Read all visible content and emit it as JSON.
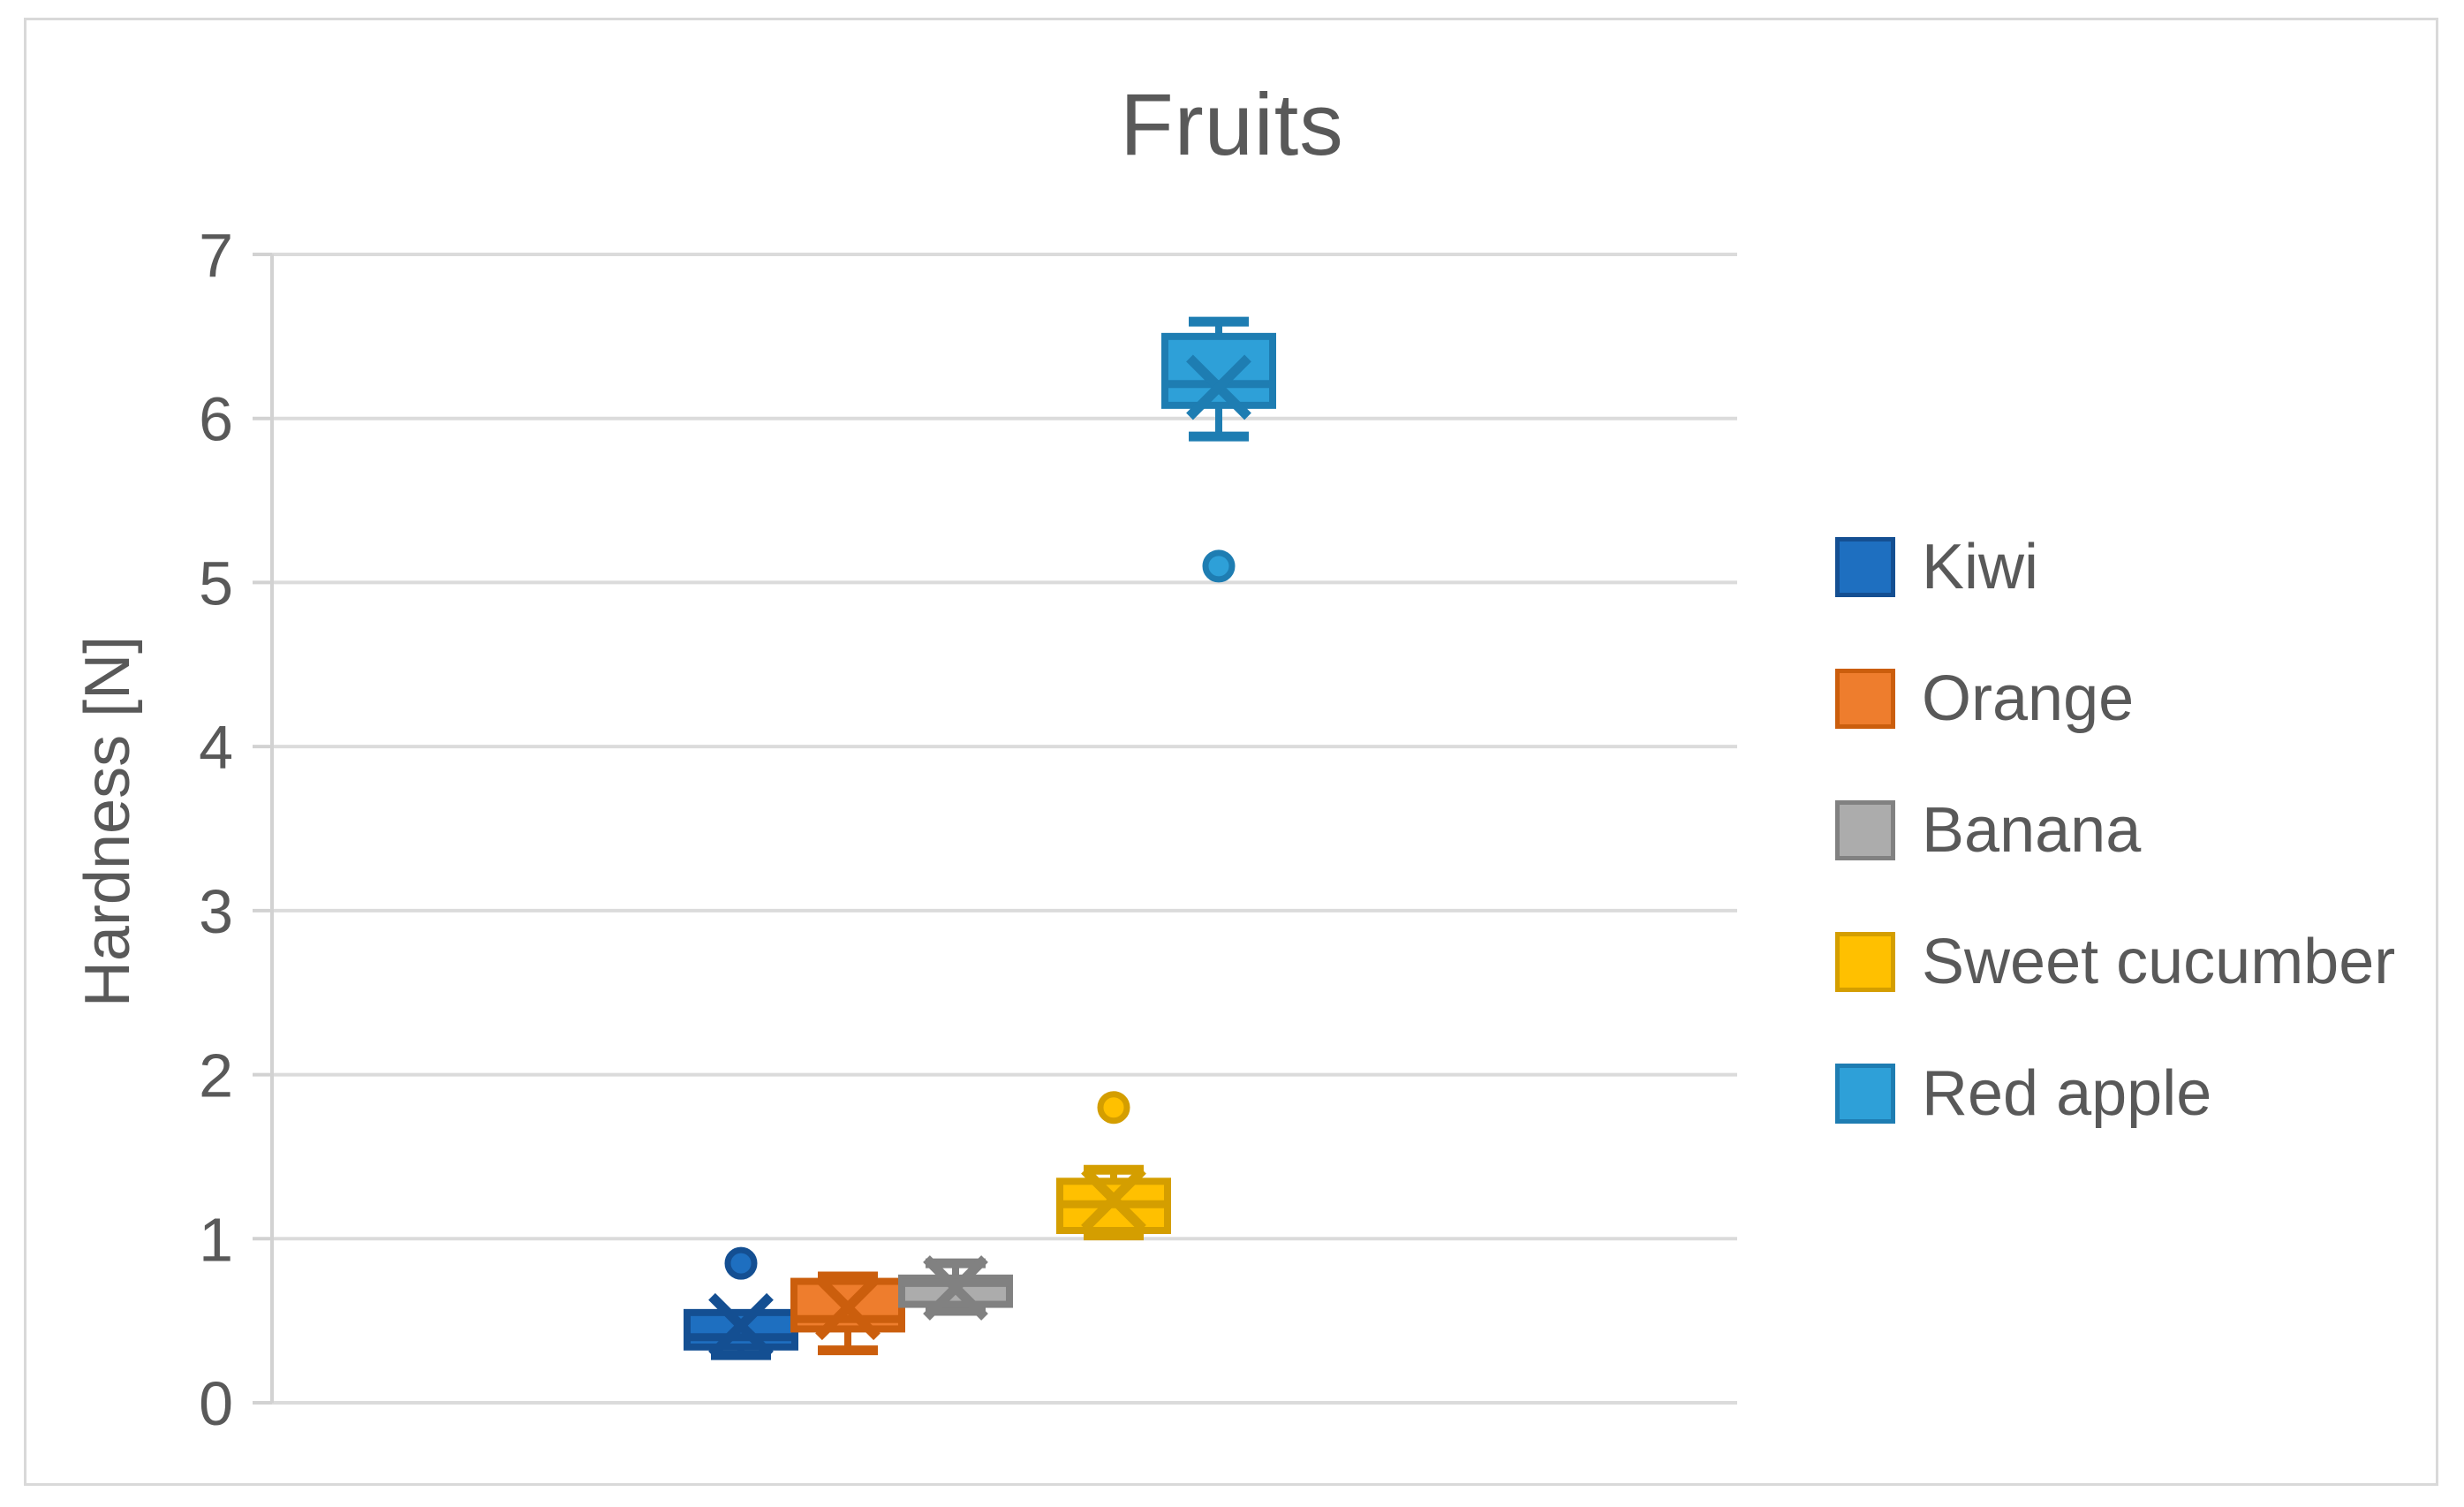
{
  "chart_data": {
    "type": "boxplot",
    "title": "Fruits",
    "xlabel": "",
    "ylabel": "Hardness [N]",
    "ylim": [
      0,
      7
    ],
    "yticks": [
      "0",
      "1",
      "2",
      "3",
      "4",
      "5",
      "6",
      "7"
    ],
    "grid": "horizontal",
    "legend_position": "right",
    "background": "#ffffff",
    "gridline_color": "#DBDBDB",
    "axis_color": "#D2D2D2",
    "text_color": "#595959",
    "border_color": "#D9D9D9",
    "series": [
      {
        "name": "Kiwi",
        "fill": "#1E6FC0",
        "line": "#144F92",
        "min": 0.29,
        "q1": 0.34,
        "median": 0.4,
        "q3": 0.55,
        "max": 0.55,
        "mean": 0.47,
        "outliers": [
          0.85
        ]
      },
      {
        "name": "Orange",
        "fill": "#EE7D2D",
        "line": "#CB5E0D",
        "min": 0.32,
        "q1": 0.45,
        "median": 0.51,
        "q3": 0.74,
        "max": 0.77,
        "mean": 0.58,
        "outliers": []
      },
      {
        "name": "Banana",
        "fill": "#ACACAC",
        "line": "#818181",
        "min": 0.56,
        "q1": 0.6,
        "median": 0.73,
        "q3": 0.76,
        "max": 0.85,
        "mean": 0.7,
        "outliers": []
      },
      {
        "name": "Sweet cucumber",
        "fill": "#FFC000",
        "line": "#D49E00",
        "min": 1.02,
        "q1": 1.05,
        "median": 1.21,
        "q3": 1.35,
        "max": 1.42,
        "mean": 1.24,
        "outliers": [
          1.8
        ]
      },
      {
        "name": "Red apple",
        "fill": "#2EA0D8",
        "line": "#1E7DB2",
        "min": 5.89,
        "q1": 6.08,
        "median": 6.21,
        "q3": 6.5,
        "max": 6.59,
        "mean": 6.19,
        "outliers": [
          5.1
        ]
      }
    ]
  }
}
